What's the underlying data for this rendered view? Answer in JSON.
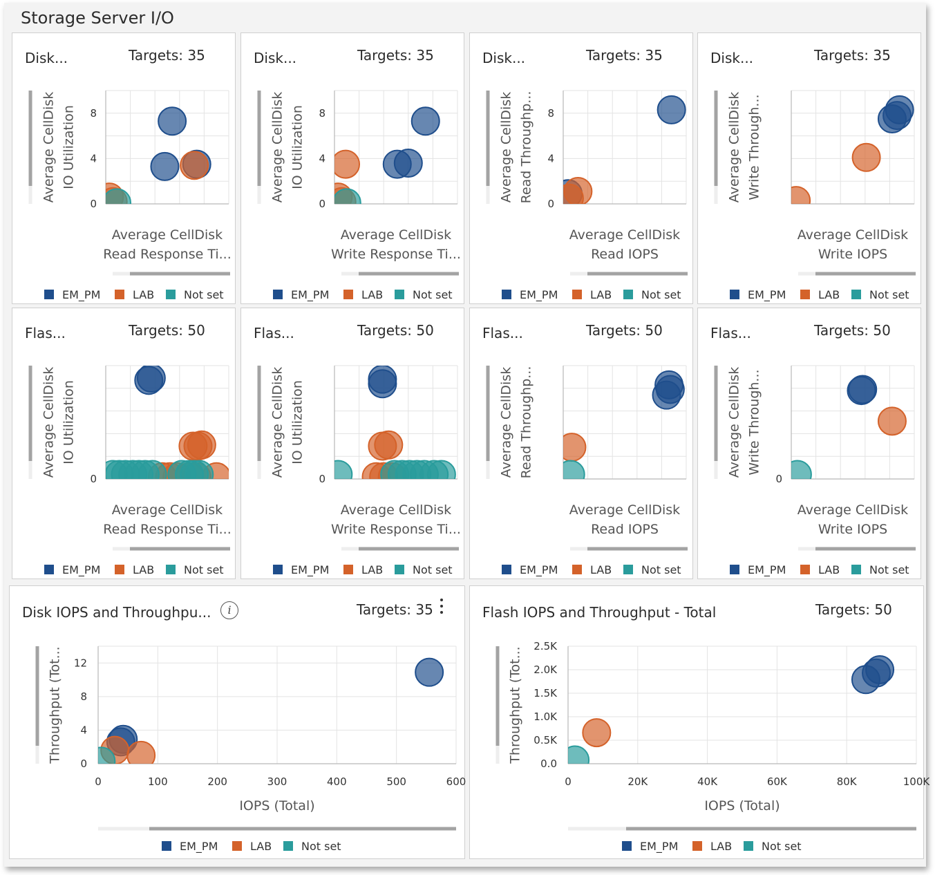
{
  "page": {
    "title": "Storage Server I/O"
  },
  "colors": {
    "EM_PM": "#1f4e8c",
    "LAB": "#d4622a",
    "Not set": "#2a9c9c"
  },
  "chart_data": [
    {
      "id": "c1",
      "type": "scatter",
      "title": "Disk...",
      "targets_label": "Targets: 35",
      "xlabel": [
        "Average CellDisk",
        "Read Response Ti..."
      ],
      "ylabel": [
        "Average CellDisk",
        "IO Utilization"
      ],
      "xlim": [
        0,
        10
      ],
      "ylim": [
        0,
        10
      ],
      "yticks": [
        0,
        4,
        8
      ],
      "xticks": [],
      "legend": [
        "EM_PM",
        "LAB",
        "Not set"
      ],
      "series": [
        {
          "name": "EM_PM",
          "points": [
            [
              5.4,
              7.3
            ],
            [
              4.8,
              3.3
            ],
            [
              7.4,
              3.5
            ]
          ]
        },
        {
          "name": "LAB",
          "points": [
            [
              7.2,
              3.4
            ],
            [
              0.3,
              0.6
            ],
            [
              0.6,
              0.2
            ]
          ]
        },
        {
          "name": "Not set",
          "points": [
            [
              0.9,
              0.1
            ]
          ]
        }
      ]
    },
    {
      "id": "c2",
      "type": "scatter",
      "title": "Disk...",
      "targets_label": "Targets: 35",
      "xlabel": [
        "Average CellDisk",
        "Write Response Ti..."
      ],
      "ylabel": [
        "Average CellDisk",
        "IO Utilization"
      ],
      "xlim": [
        0,
        10
      ],
      "ylim": [
        0,
        10
      ],
      "yticks": [
        0,
        4,
        8
      ],
      "xticks": [],
      "legend": [
        "EM_PM",
        "LAB",
        "Not set"
      ],
      "series": [
        {
          "name": "EM_PM",
          "points": [
            [
              7.4,
              7.3
            ],
            [
              5.1,
              3.5
            ],
            [
              6.0,
              3.6
            ]
          ]
        },
        {
          "name": "LAB",
          "points": [
            [
              0.9,
              3.5
            ],
            [
              0.3,
              0.6
            ],
            [
              0.6,
              0.2
            ]
          ]
        },
        {
          "name": "Not set",
          "points": [
            [
              1.0,
              0.1
            ]
          ]
        }
      ]
    },
    {
      "id": "c3",
      "type": "scatter",
      "title": "Disk...",
      "targets_label": "Targets: 35",
      "xlabel": [
        "Average CellDisk",
        "Read IOPS"
      ],
      "ylabel": [
        "Average CellDisk",
        "Read Throughp..."
      ],
      "xlim": [
        0,
        10
      ],
      "ylim": [
        0,
        10
      ],
      "yticks": [
        0,
        4,
        8
      ],
      "xticks": [],
      "legend": [
        "EM_PM",
        "LAB",
        "Not set"
      ],
      "series": [
        {
          "name": "EM_PM",
          "points": [
            [
              8.8,
              8.3
            ],
            [
              0.4,
              0.9
            ]
          ]
        },
        {
          "name": "LAB",
          "points": [
            [
              1.2,
              1.1
            ],
            [
              0.5,
              0.5
            ]
          ]
        },
        {
          "name": "Not set",
          "points": []
        }
      ]
    },
    {
      "id": "c4",
      "type": "scatter",
      "title": "Disk...",
      "targets_label": "Targets: 35",
      "xlabel": [
        "Average CellDisk",
        "Write IOPS"
      ],
      "ylabel": [
        "Average CellDisk",
        "Write Through..."
      ],
      "xlim": [
        0,
        10
      ],
      "ylim": [
        0,
        10
      ],
      "yticks": [],
      "xticks": [],
      "legend": [
        "EM_PM",
        "LAB",
        "Not set"
      ],
      "series": [
        {
          "name": "EM_PM",
          "points": [
            [
              8.6,
              7.8
            ],
            [
              8.2,
              7.5
            ],
            [
              8.8,
              8.3
            ]
          ]
        },
        {
          "name": "LAB",
          "points": [
            [
              6.1,
              4.1
            ],
            [
              0.4,
              0.3
            ]
          ]
        },
        {
          "name": "Not set",
          "points": []
        }
      ]
    },
    {
      "id": "c5",
      "type": "scatter",
      "title": "Flas...",
      "targets_label": "Targets: 50",
      "xlabel": [
        "Average CellDisk",
        "Read Response Ti..."
      ],
      "ylabel": [
        "Average CellDisk",
        "IO Utilization"
      ],
      "xlim": [
        0,
        10
      ],
      "ylim": [
        0,
        10
      ],
      "yticks": [
        0
      ],
      "xticks": [],
      "legend": [
        "EM_PM",
        "LAB",
        "Not set"
      ],
      "series": [
        {
          "name": "EM_PM",
          "points": [
            [
              3.5,
              8.7
            ],
            [
              3.7,
              8.9
            ]
          ]
        },
        {
          "name": "LAB",
          "points": [
            [
              7.1,
              2.9
            ],
            [
              7.5,
              2.9
            ],
            [
              7.8,
              3.0
            ],
            [
              4.6,
              0.2
            ],
            [
              5.2,
              0.2
            ],
            [
              5.8,
              0.2
            ],
            [
              6.8,
              0.2
            ],
            [
              7.4,
              0.2
            ],
            [
              9.0,
              0.2
            ]
          ]
        },
        {
          "name": "Not set",
          "points": [
            [
              0.6,
              0.4
            ],
            [
              1.1,
              0.4
            ],
            [
              1.6,
              0.4
            ],
            [
              2.2,
              0.4
            ],
            [
              2.7,
              0.4
            ],
            [
              3.2,
              0.4
            ],
            [
              3.8,
              0.4
            ],
            [
              6.2,
              0.4
            ],
            [
              6.8,
              0.4
            ],
            [
              7.2,
              0.4
            ],
            [
              7.6,
              0.4
            ]
          ]
        }
      ]
    },
    {
      "id": "c6",
      "type": "scatter",
      "title": "Flas...",
      "targets_label": "Targets: 50",
      "xlabel": [
        "Average CellDisk",
        "Write Response Ti..."
      ],
      "ylabel": [
        "Average CellDisk",
        "IO Utilization"
      ],
      "xlim": [
        0,
        10
      ],
      "ylim": [
        0,
        10
      ],
      "yticks": [
        0
      ],
      "xticks": [],
      "legend": [
        "EM_PM",
        "LAB",
        "Not set"
      ],
      "series": [
        {
          "name": "EM_PM",
          "points": [
            [
              3.9,
              8.4
            ],
            [
              3.9,
              8.8
            ]
          ]
        },
        {
          "name": "LAB",
          "points": [
            [
              3.9,
              2.9
            ],
            [
              4.4,
              3.0
            ],
            [
              3.4,
              0.2
            ],
            [
              4.0,
              0.2
            ],
            [
              4.7,
              0.2
            ]
          ]
        },
        {
          "name": "Not set",
          "points": [
            [
              0.3,
              0.4
            ],
            [
              4.9,
              0.4
            ],
            [
              5.5,
              0.4
            ],
            [
              6.1,
              0.4
            ],
            [
              6.7,
              0.4
            ],
            [
              7.3,
              0.4
            ],
            [
              8.1,
              0.4
            ],
            [
              8.7,
              0.4
            ]
          ]
        }
      ]
    },
    {
      "id": "c7",
      "type": "scatter",
      "title": "Flas...",
      "targets_label": "Targets: 50",
      "xlabel": [
        "Average CellDisk",
        "Read IOPS"
      ],
      "ylabel": [
        "Average CellDisk",
        "Read Throughp..."
      ],
      "xlim": [
        0,
        10
      ],
      "ylim": [
        0,
        10
      ],
      "yticks": [],
      "xticks": [],
      "legend": [
        "EM_PM",
        "LAB",
        "Not set"
      ],
      "series": [
        {
          "name": "EM_PM",
          "points": [
            [
              8.4,
              7.4
            ],
            [
              8.7,
              7.9
            ],
            [
              8.6,
              8.3
            ]
          ]
        },
        {
          "name": "LAB",
          "points": [
            [
              0.7,
              2.8
            ]
          ]
        },
        {
          "name": "Not set",
          "points": [
            [
              0.6,
              0.4
            ]
          ]
        }
      ]
    },
    {
      "id": "c8",
      "type": "scatter",
      "title": "Flas...",
      "targets_label": "Targets: 50",
      "xlabel": [
        "Average CellDisk",
        "Write IOPS"
      ],
      "ylabel": [
        "Average CellDisk",
        "Write Through..."
      ],
      "xlim": [
        0,
        10
      ],
      "ylim": [
        0,
        10
      ],
      "yticks": [
        0
      ],
      "xticks": [],
      "legend": [
        "EM_PM",
        "LAB",
        "Not set"
      ],
      "series": [
        {
          "name": "EM_PM",
          "points": [
            [
              5.7,
              7.8
            ],
            [
              5.8,
              7.9
            ]
          ]
        },
        {
          "name": "LAB",
          "points": [
            [
              8.2,
              5.1
            ]
          ]
        },
        {
          "name": "Not set",
          "points": [
            [
              0.5,
              0.4
            ]
          ]
        }
      ]
    },
    {
      "id": "c9",
      "type": "scatter",
      "title": "Disk IOPS and Throughpu...",
      "targets_label": "Targets: 35",
      "xlabel": [
        "IOPS (Total)"
      ],
      "ylabel": [
        "Throughput (Tot..."
      ],
      "xlim": [
        0,
        600
      ],
      "ylim": [
        0,
        14
      ],
      "yticks": [
        0,
        4,
        8,
        12
      ],
      "xticks": [
        0,
        100,
        200,
        300,
        400,
        500,
        600
      ],
      "legend": [
        "EM_PM",
        "LAB",
        "Not set"
      ],
      "series": [
        {
          "name": "EM_PM",
          "points": [
            [
              555,
              10.9
            ],
            [
              38,
              2.6
            ],
            [
              42,
              2.9
            ]
          ]
        },
        {
          "name": "LAB",
          "points": [
            [
              28,
              1.6
            ],
            [
              72,
              1.0
            ]
          ]
        },
        {
          "name": "Not set",
          "points": [
            [
              5,
              0.3
            ]
          ]
        }
      ]
    },
    {
      "id": "c10",
      "type": "scatter",
      "title": "Flash IOPS and Throughput - Total",
      "targets_label": "Targets: 50",
      "xlabel": [
        "IOPS (Total)"
      ],
      "ylabel": [
        "Throughput (Tot..."
      ],
      "xlim": [
        0,
        100000
      ],
      "ylim": [
        0,
        2500
      ],
      "yticks": [
        0,
        500,
        1000,
        1500,
        2000,
        2500
      ],
      "ytick_labels": [
        "0.0",
        "0.5K",
        "1.0K",
        "1.5K",
        "2.0K",
        "2.5K"
      ],
      "xticks": [
        0,
        20000,
        40000,
        60000,
        80000,
        100000
      ],
      "xtick_labels": [
        "0",
        "20K",
        "40K",
        "60K",
        "80K",
        "100K"
      ],
      "legend": [
        "EM_PM",
        "LAB",
        "Not set"
      ],
      "series": [
        {
          "name": "EM_PM",
          "points": [
            [
              85500,
              1790
            ],
            [
              88500,
              1930
            ],
            [
              89500,
              2000
            ]
          ]
        },
        {
          "name": "LAB",
          "points": [
            [
              8200,
              660
            ]
          ]
        },
        {
          "name": "Not set",
          "points": [
            [
              2000,
              80
            ]
          ]
        }
      ]
    }
  ]
}
